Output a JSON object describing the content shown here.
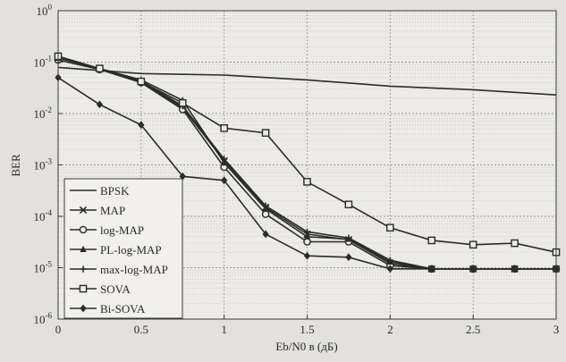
{
  "chart_data": {
    "type": "line",
    "title": "",
    "xlabel": "Eb/N0 в (дБ)",
    "ylabel": "BER",
    "xlim": [
      0,
      3
    ],
    "ylim": [
      1e-06,
      1
    ],
    "yscale": "log",
    "grid": true,
    "legend_position": "bottom-left",
    "x_ticks": [
      "0",
      "0.5",
      "1",
      "1.5",
      "2",
      "2.5",
      "3"
    ],
    "y_ticks": [
      {
        "base": "10",
        "exp": "0"
      },
      {
        "base": "10",
        "exp": "-1"
      },
      {
        "base": "10",
        "exp": "-2"
      },
      {
        "base": "10",
        "exp": "-3"
      },
      {
        "base": "10",
        "exp": "-4"
      },
      {
        "base": "10",
        "exp": "-5"
      },
      {
        "base": "10",
        "exp": "-6"
      }
    ],
    "series": [
      {
        "name": "BPSK",
        "marker": "none",
        "x": [
          0,
          0.5,
          1,
          1.5,
          2,
          2.5,
          3
        ],
        "y": [
          0.079,
          0.06,
          0.056,
          0.045,
          0.034,
          0.029,
          0.023
        ]
      },
      {
        "name": "MAP",
        "marker": "x",
        "x": [
          0,
          0.25,
          0.5,
          0.75,
          1,
          1.25,
          1.5,
          1.75,
          2,
          2.25,
          2.5,
          2.75,
          3
        ],
        "y": [
          0.12,
          0.075,
          0.042,
          0.013,
          0.0012,
          0.00015,
          4.5e-05,
          3.5e-05,
          1.2e-05,
          9.5e-06,
          9.5e-06,
          9.5e-06,
          9.5e-06
        ]
      },
      {
        "name": "log-MAP",
        "marker": "circle",
        "x": [
          0,
          0.25,
          0.5,
          0.75,
          1,
          1.25,
          1.5,
          1.75,
          2,
          2.25,
          2.5,
          2.75,
          3
        ],
        "y": [
          0.11,
          0.072,
          0.04,
          0.012,
          0.0009,
          0.00011,
          3.2e-05,
          3.2e-05,
          1.1e-05,
          9.5e-06,
          9.5e-06,
          9.5e-06,
          9.5e-06
        ]
      },
      {
        "name": "PL-log-MAP",
        "marker": "triangle",
        "x": [
          0,
          0.25,
          0.5,
          0.75,
          1,
          1.25,
          1.5,
          1.75,
          2,
          2.25,
          2.5,
          2.75,
          3
        ],
        "y": [
          0.12,
          0.075,
          0.045,
          0.018,
          0.0011,
          0.00014,
          4e-05,
          3.6e-05,
          1.3e-05,
          9.5e-06,
          9.5e-06,
          9.5e-06,
          9.5e-06
        ]
      },
      {
        "name": "max-log-MAP",
        "marker": "plus",
        "x": [
          0,
          0.25,
          0.5,
          0.75,
          1,
          1.25,
          1.5,
          1.75,
          2,
          2.25,
          2.5,
          2.75,
          3
        ],
        "y": [
          0.12,
          0.075,
          0.043,
          0.014,
          0.0013,
          0.00016,
          5e-05,
          3.8e-05,
          1.4e-05,
          9.5e-06,
          9.5e-06,
          9.5e-06,
          9.5e-06
        ]
      },
      {
        "name": "SOVA",
        "marker": "square",
        "x": [
          0,
          0.25,
          0.5,
          0.75,
          1,
          1.25,
          1.5,
          1.75,
          2,
          2.25,
          2.5,
          2.75,
          3
        ],
        "y": [
          0.13,
          0.075,
          0.042,
          0.016,
          0.0052,
          0.0042,
          0.00047,
          0.00017,
          6e-05,
          3.4e-05,
          2.8e-05,
          3e-05,
          2e-05
        ]
      },
      {
        "name": "Bi-SOVA",
        "marker": "diamond",
        "x": [
          0,
          0.25,
          0.5,
          0.75,
          1,
          1.25,
          1.5,
          1.75,
          2,
          2.25,
          2.5,
          2.75,
          3
        ],
        "y": [
          0.05,
          0.015,
          0.006,
          0.0006,
          0.0005,
          4.5e-05,
          1.7e-05,
          1.6e-05,
          9.5e-06,
          9.5e-06,
          9.5e-06,
          9.5e-06,
          9.5e-06
        ]
      }
    ]
  }
}
